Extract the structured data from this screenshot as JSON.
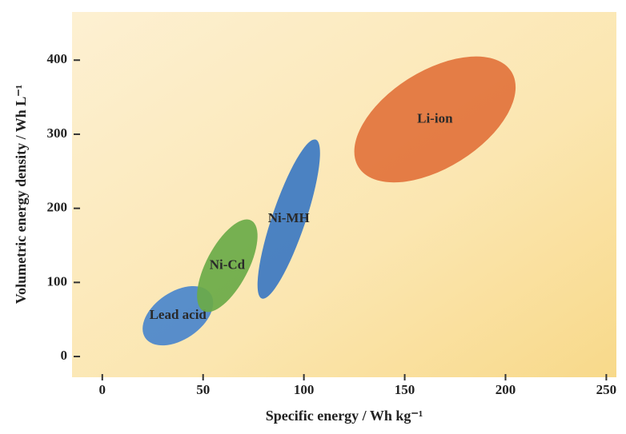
{
  "chart_data": {
    "type": "region",
    "xlabel": "Specific energy / Wh kg⁻¹",
    "ylabel": "Volumetric energy density / Wh L⁻¹",
    "xlim": [
      -15,
      255
    ],
    "ylim": [
      -28,
      465
    ],
    "xticks": [
      0,
      50,
      100,
      150,
      200,
      250
    ],
    "yticks": [
      0,
      100,
      200,
      300,
      400
    ],
    "series": [
      {
        "name": "Lead acid",
        "color": "#4a86cc",
        "x": [
          20,
          55
        ],
        "y": [
          15,
          95
        ]
      },
      {
        "name": "Ni-Cd",
        "color": "#6aaa48",
        "x": [
          47,
          77
        ],
        "y": [
          60,
          185
        ]
      },
      {
        "name": "Ni-MH",
        "color": "#3c78c2",
        "x": [
          77,
          108
        ],
        "y": [
          78,
          293
        ]
      },
      {
        "name": "Li-ion",
        "color": "#e2733c",
        "x": [
          125,
          205
        ],
        "y": [
          235,
          405
        ]
      }
    ]
  }
}
